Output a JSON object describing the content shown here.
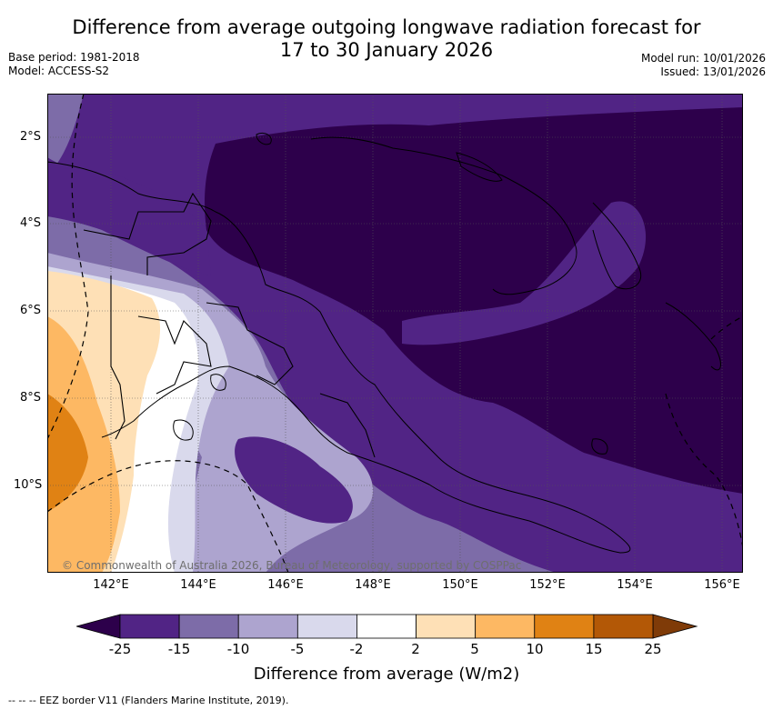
{
  "title": {
    "line1": "Difference from average outgoing longwave radiation forecast for",
    "line2": "17 to 30 January 2026"
  },
  "meta": {
    "base_period": "Base period: 1981-2018",
    "model": "Model: ACCESS-S2",
    "model_run": "Model run: 10/01/2026",
    "issued": "Issued: 13/01/2026"
  },
  "map": {
    "region": "Papua New Guinea",
    "lat_ticks": [
      "2°S",
      "4°S",
      "6°S",
      "8°S",
      "10°S"
    ],
    "lon_ticks": [
      "142°E",
      "144°E",
      "146°E",
      "148°E",
      "150°E",
      "152°E",
      "154°E",
      "156°E"
    ],
    "copyright": "© Commonwealth of Australia 2026, Bureau of Meteorology, supported by COSPPac"
  },
  "legend": {
    "title": "Difference from average (W/m2)",
    "labels": [
      "-25",
      "-15",
      "-10",
      "-5",
      "-2",
      "2",
      "5",
      "10",
      "15",
      "25"
    ],
    "colors": [
      "#512485",
      "#7d6ca8",
      "#ada4cf",
      "#d9d9ec",
      "#ffffff",
      "#fee0b6",
      "#fdb863",
      "#e08214",
      "#b35806"
    ],
    "under_color": "#2d004b",
    "over_color": "#7f3b08"
  },
  "footnote": "--  --  -- EEZ border V11 (Flanders Marine Institute, 2019)."
}
